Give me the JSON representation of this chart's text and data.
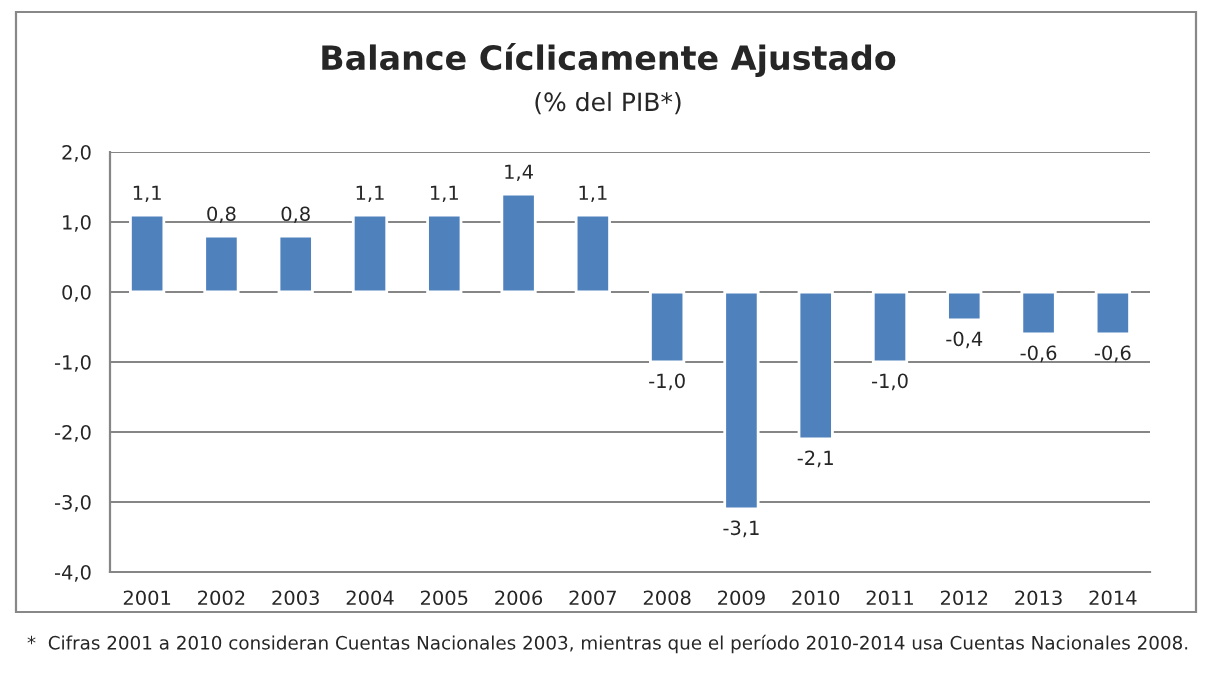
{
  "chart_data": {
    "type": "bar",
    "title": "Balance Cíclicamente Ajustado",
    "subtitle": "(% del PIB*)",
    "categories": [
      "2001",
      "2002",
      "2003",
      "2004",
      "2005",
      "2006",
      "2007",
      "2008",
      "2009",
      "2010",
      "2011",
      "2012",
      "2013",
      "2014"
    ],
    "values": [
      1.1,
      0.8,
      0.8,
      1.1,
      1.1,
      1.4,
      1.1,
      -1.0,
      -3.1,
      -2.1,
      -1.0,
      -0.4,
      -0.6,
      -0.6
    ],
    "value_labels": [
      "1,1",
      "0,8",
      "0,8",
      "1,1",
      "1,1",
      "1,4",
      "1,1",
      "-1,0",
      "-3,1",
      "-2,1",
      "-1,0",
      "-0,4",
      "-0,6",
      "-0,6"
    ],
    "color": "#4f81bd",
    "ylim": [
      -4,
      2
    ],
    "yticks": [
      {
        "value": 2,
        "label": "2,0"
      },
      {
        "value": 1,
        "label": "1,0"
      },
      {
        "value": 0,
        "label": "0,0"
      },
      {
        "value": -1,
        "label": "-1,0"
      },
      {
        "value": -2,
        "label": "-2,0"
      },
      {
        "value": -3,
        "label": "-3,0"
      },
      {
        "value": -4,
        "label": "-4,0"
      }
    ],
    "grid": "y",
    "annotations": [
      "*  Cifras 2001 a 2010 consideran Cuentas Nacionales 2003, mientras que el período 2010-2014 usa Cuentas Nacionales 2008."
    ]
  }
}
